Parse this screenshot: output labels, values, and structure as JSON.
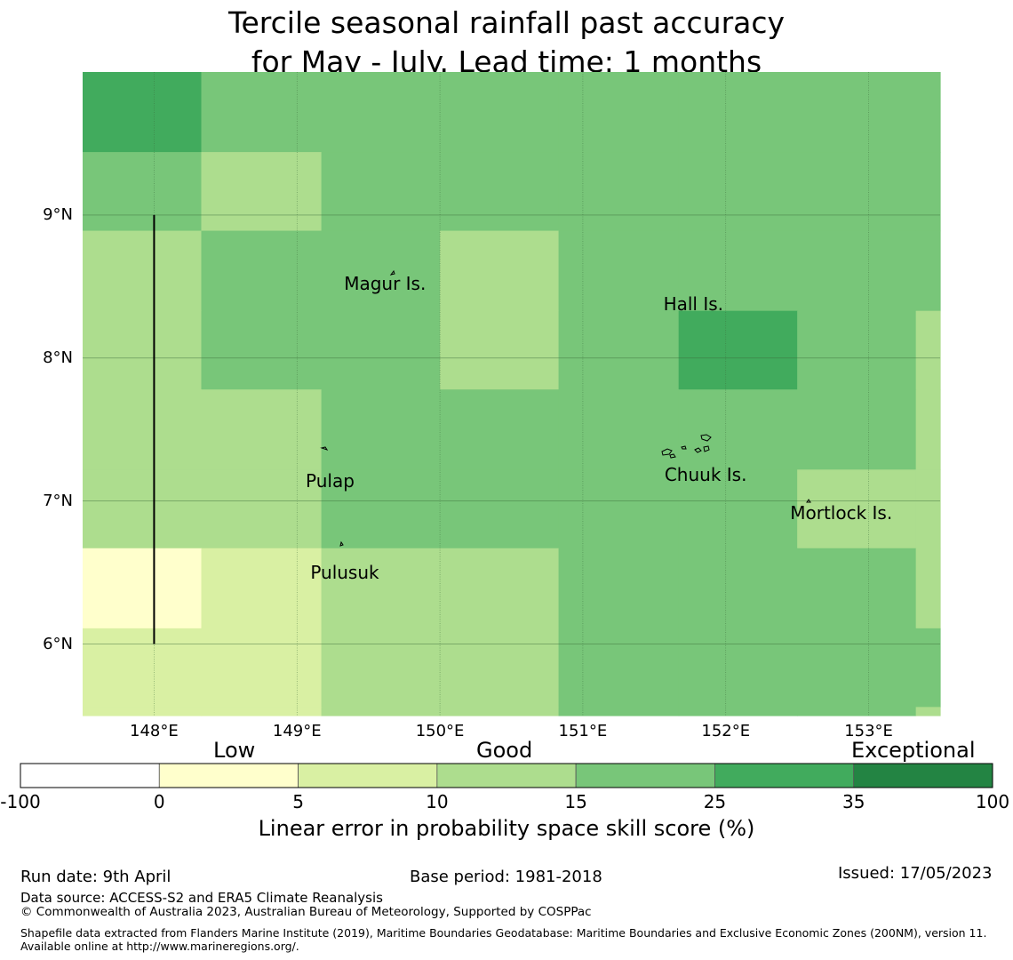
{
  "title": {
    "line1": "Tercile seasonal rainfall past accuracy",
    "line2": "for May - July. Lead time: 1 months"
  },
  "map": {
    "lon_range": [
      147.5,
      153.5
    ],
    "lat_range": [
      5.5,
      10.0
    ],
    "lon_ticks": [
      148,
      149,
      150,
      151,
      152,
      153
    ],
    "lon_tick_labels": [
      "148°E",
      "149°E",
      "150°E",
      "151°E",
      "152°E",
      "153°E"
    ],
    "lat_ticks": [
      6,
      7,
      8,
      9
    ],
    "lat_tick_labels": [
      "6°N",
      "7°N",
      "8°N",
      "9°N"
    ],
    "cell_lons": [
      147.5,
      148.33,
      149.17,
      150.0,
      150.83,
      151.67,
      152.5,
      153.33,
      153.5
    ],
    "cell_lats": [
      10.0,
      9.44,
      8.89,
      8.33,
      7.78,
      7.22,
      6.67,
      6.11,
      5.56,
      5.5
    ],
    "skill_classes": [
      [
        5,
        4,
        4,
        4,
        4,
        4,
        4,
        4
      ],
      [
        4,
        3,
        4,
        4,
        4,
        4,
        4,
        4
      ],
      [
        3,
        4,
        4,
        3,
        4,
        4,
        4,
        4
      ],
      [
        3,
        4,
        4,
        3,
        4,
        5,
        4,
        3
      ],
      [
        3,
        3,
        4,
        4,
        4,
        4,
        4,
        3
      ],
      [
        3,
        3,
        4,
        4,
        4,
        4,
        3,
        3
      ],
      [
        1,
        2,
        3,
        3,
        4,
        4,
        4,
        3
      ],
      [
        2,
        2,
        3,
        3,
        4,
        4,
        4,
        4
      ],
      [
        2,
        2,
        3,
        3,
        4,
        4,
        4,
        3
      ]
    ],
    "meridian_line": {
      "lon": 148.0,
      "lat_from": 6.0,
      "lat_to": 9.0
    },
    "places": [
      {
        "name": "Magur Is.",
        "lon": 149.41,
        "lat": 8.52
      },
      {
        "name": "Hall Is.",
        "lon": 151.8,
        "lat": 8.48
      },
      {
        "name": "Pulap",
        "lon": 149.21,
        "lat": 7.25
      },
      {
        "name": "Chuuk Is.",
        "lon": 151.87,
        "lat": 7.26
      },
      {
        "name": "Mortlock Is.",
        "lon": 152.6,
        "lat": 6.93
      },
      {
        "name": "Pulusuk",
        "lon": 149.33,
        "lat": 6.59
      }
    ]
  },
  "colorbar": {
    "bounds": [
      -100,
      0,
      5,
      10,
      15,
      25,
      35,
      100
    ],
    "tick_labels": [
      "-100",
      "0",
      "5",
      "10",
      "15",
      "25",
      "35",
      "100"
    ],
    "colors": [
      "#ffffff",
      "#ffffcc",
      "#d9f0a3",
      "#addd8e",
      "#78c679",
      "#41ab5d",
      "#238443"
    ],
    "categories": [
      "Low",
      "Good",
      "Exceptional"
    ],
    "label": "Linear error in probability space skill score (%)"
  },
  "footer": {
    "run_date": "Run date: 9th April",
    "base_period": "Base period: 1981-2018",
    "issued": "Issued: 17/05/2023",
    "data_source": "Data source: ACCESS-S2 and ERA5 Climate Reanalysis",
    "copyright": "© Commonwealth of Australia 2023, Australian Bureau of Meteorology, Supported by COSPPac",
    "shapefile": "Shapefile data extracted from Flanders Marine Institute (2019), Maritime Boundaries Geodatabase: Maritime Boundaries and Exclusive Economic Zones (200NM), version 11. Available online at http://www.marineregions.org/."
  }
}
